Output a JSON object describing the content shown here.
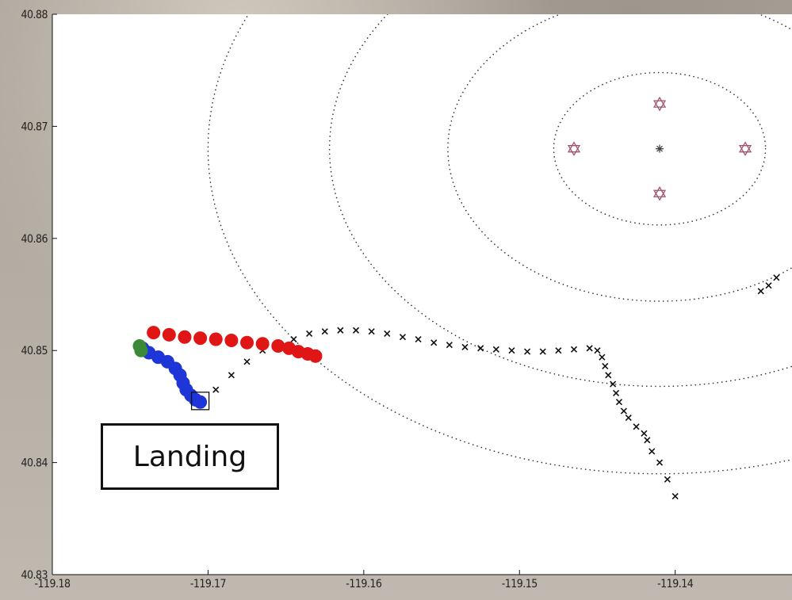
{
  "chart_data": {
    "type": "scatter",
    "xlim": [
      -119.18,
      -119.1325
    ],
    "ylim": [
      40.83,
      40.88
    ],
    "x_ticks": [
      -119.18,
      -119.17,
      -119.16,
      -119.15,
      -119.14
    ],
    "x_tick_labels": [
      "-119.18",
      "-119.17",
      "-119.16",
      "-119.15",
      "-119.14"
    ],
    "y_ticks": [
      40.83,
      40.84,
      40.85,
      40.86,
      40.87,
      40.88
    ],
    "y_tick_labels": [
      "40.83",
      "40.84",
      "40.85",
      "40.86",
      "40.87",
      "40.88"
    ],
    "grid": false,
    "title": "",
    "xlabel": "",
    "ylabel": "",
    "series": [
      {
        "marker": "x",
        "color": "#111111",
        "x": [
          -119.1705,
          -119.1695,
          -119.1685,
          -119.1675,
          -119.1665,
          -119.1655,
          -119.1645,
          -119.1635,
          -119.1625,
          -119.1615,
          -119.1605,
          -119.1595,
          -119.1585,
          -119.1575,
          -119.1565,
          -119.1555,
          -119.1545,
          -119.1535,
          -119.1525,
          -119.1515,
          -119.1505,
          -119.1495,
          -119.1485,
          -119.1475,
          -119.1465,
          -119.1455,
          -119.145,
          -119.1447,
          -119.1445,
          -119.1443,
          -119.144,
          -119.1438,
          -119.1436,
          -119.1433,
          -119.143,
          -119.1425,
          -119.142,
          -119.1418,
          -119.1415,
          -119.141,
          -119.1405,
          -119.14,
          -119.1345,
          -119.134,
          -119.1335
        ],
        "y": [
          40.8455,
          40.8465,
          40.8478,
          40.849,
          40.85,
          40.8505,
          40.851,
          40.8515,
          40.8517,
          40.8518,
          40.8518,
          40.8517,
          40.8515,
          40.8512,
          40.851,
          40.8507,
          40.8505,
          40.8503,
          40.8502,
          40.8501,
          40.85,
          40.8499,
          40.8499,
          40.85,
          40.8501,
          40.8502,
          40.85,
          40.8494,
          40.8486,
          40.8478,
          40.847,
          40.8462,
          40.8454,
          40.8446,
          40.844,
          40.8432,
          40.8426,
          40.842,
          40.841,
          40.84,
          40.8385,
          40.837,
          40.8553,
          40.8558,
          40.8565
        ]
      },
      {
        "marker": "o",
        "color": "#e01616",
        "x": [
          -119.1735,
          -119.1725,
          -119.1715,
          -119.1705,
          -119.1695,
          -119.1685,
          -119.1675,
          -119.1665,
          -119.1655,
          -119.1648,
          -119.1642,
          -119.1636,
          -119.1631
        ],
        "y": [
          40.8516,
          40.8514,
          40.8512,
          40.8511,
          40.851,
          40.8509,
          40.8507,
          40.8506,
          40.8504,
          40.8502,
          40.8499,
          40.8497,
          40.8495
        ]
      },
      {
        "marker": "o",
        "color": "#1e35d8",
        "x": [
          -119.1742,
          -119.1738,
          -119.1732,
          -119.1726,
          -119.1721,
          -119.1718,
          -119.1716,
          -119.1714,
          -119.1711,
          -119.1708,
          -119.1705
        ],
        "y": [
          40.8502,
          40.8498,
          40.8494,
          40.849,
          40.8484,
          40.8478,
          40.8471,
          40.8465,
          40.846,
          40.8456,
          40.8454
        ]
      },
      {
        "marker": "o",
        "color": "#3a8a3a",
        "x": [
          -119.1744,
          -119.1743
        ],
        "y": [
          40.8504,
          40.85
        ]
      },
      {
        "marker": "star",
        "color": "#a0526e",
        "x": [
          -119.1465,
          -119.141,
          -119.1355,
          -119.141
        ],
        "y": [
          40.868,
          40.872,
          40.868,
          40.864
        ]
      },
      {
        "marker": "asterisk",
        "color": "#444444",
        "x": [
          -119.141
        ],
        "y": [
          40.868
        ]
      }
    ],
    "circles": [
      {
        "cx": -119.141,
        "cy": 40.868,
        "r": 0.0068
      },
      {
        "cx": -119.141,
        "cy": 40.868,
        "r": 0.0136
      },
      {
        "cx": -119.141,
        "cy": 40.868,
        "r": 0.0212
      },
      {
        "cx": -119.141,
        "cy": 40.868,
        "r": 0.029
      }
    ],
    "annotations": [
      {
        "text": "Landing",
        "x": -119.1705,
        "y": 40.8455
      }
    ]
  }
}
